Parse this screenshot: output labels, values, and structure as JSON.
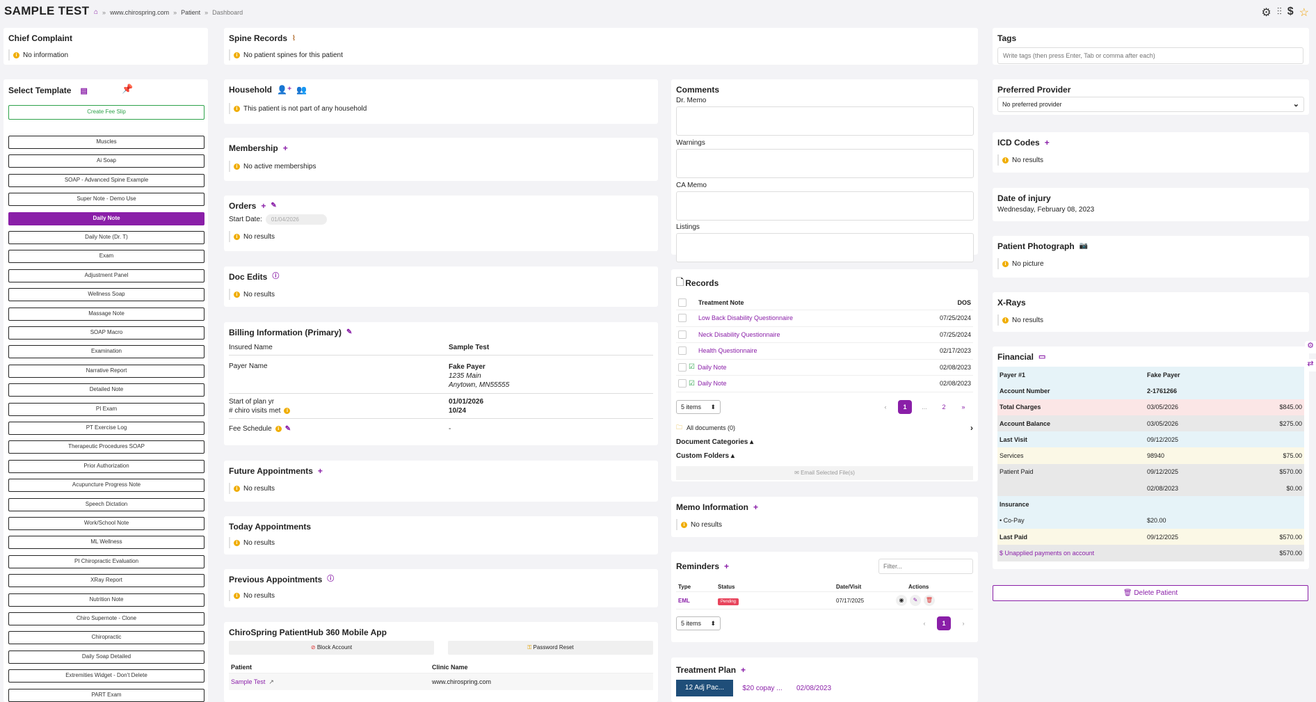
{
  "header": {
    "title": "SAMPLE TEST",
    "breadcrumb": [
      "www.chirospring.com",
      "Patient",
      "Dashboard"
    ]
  },
  "chief_complaint": {
    "title": "Chief Complaint",
    "text": "No information"
  },
  "spine_records": {
    "title": "Spine Records",
    "text": "No patient spines for this patient"
  },
  "tags": {
    "title": "Tags",
    "placeholder": "Write tags (then press Enter, Tab or comma after each)"
  },
  "select_template": {
    "title": "Select Template",
    "create_label": "Create Fee Slip",
    "items": [
      "Muscles",
      "Ai Soap",
      "SOAP - Advanced Spine Example",
      "Super Note - Demo Use",
      "Daily Note",
      "Daily Note (Dr. T)",
      "Exam",
      "Adjustment Panel",
      "Wellness Soap",
      "Massage Note",
      "SOAP Macro",
      "Examination",
      "Narrative Report",
      "Detailed Note",
      "PI Exam",
      "PT Exercise Log",
      "Therapeutic Procedures SOAP",
      "Prior Authorization",
      "Acupuncture Progress Note",
      "Speech Dictation",
      "Work/School Note",
      "ML Wellness",
      "PI Chiropractic Evaluation",
      "XRay Report",
      "Nutrition Note",
      "Chiro Supernote - Clone",
      "Chiropractic",
      "Daily Soap Detailed",
      "Extremities Widget - Don't Delete",
      "PART Exam"
    ],
    "active": "Daily Note"
  },
  "household": {
    "title": "Household",
    "text": "This patient is not part of any household"
  },
  "membership": {
    "title": "Membership",
    "text": "No active memberships"
  },
  "orders": {
    "title": "Orders",
    "start_label": "Start Date:",
    "start_value": "01/04/2026",
    "text": "No results"
  },
  "doc_edits": {
    "title": "Doc Edits",
    "text": "No results"
  },
  "billing": {
    "title": "Billing Information (Primary)",
    "insured_label": "Insured Name",
    "insured_value": "Sample Test",
    "payer_label": "Payer Name",
    "payer_value": "Fake Payer",
    "payer_addr1": "1235 Main",
    "payer_addr2": "Anytown, MN55555",
    "plan_label": "Start of plan yr",
    "plan_value": "01/01/2026",
    "visits_label": "# chiro visits met",
    "visits_value": "10/24",
    "fee_label": "Fee Schedule",
    "fee_value": "-"
  },
  "future_appts": {
    "title": "Future Appointments",
    "text": "No results"
  },
  "today_appts": {
    "title": "Today Appointments",
    "text": "No results"
  },
  "previous_appts": {
    "title": "Previous Appointments",
    "text": "No results"
  },
  "mobile_app": {
    "title": "ChiroSpring PatientHub 360 Mobile App",
    "block_label": "Block Account",
    "reset_label": "Password Reset",
    "col_patient": "Patient",
    "col_clinic": "Clinic Name",
    "patient": "Sample Test",
    "clinic": "www.chirospring.com"
  },
  "comments": {
    "title": "Comments",
    "dr_memo": "Dr. Memo",
    "warnings": "Warnings",
    "ca_memo": "CA Memo",
    "listings": "Listings"
  },
  "records": {
    "title": "Records",
    "col_note": "Treatment Note",
    "col_dos": "DOS",
    "rows": [
      {
        "name": "Low Back Disability Questionnaire",
        "dos": "07/25/2024"
      },
      {
        "name": "Neck Disability Questionnaire",
        "dos": "07/25/2024"
      },
      {
        "name": "Health Questionnaire",
        "dos": "02/17/2023"
      },
      {
        "name": "Daily Note",
        "dos": "02/08/2023"
      },
      {
        "name": "Daily Note",
        "dos": "02/08/2023"
      }
    ],
    "items_select": "5 items",
    "pages": [
      "1",
      "...",
      "2"
    ],
    "all_docs": "All documents (0)",
    "doc_categories": "Document Categories",
    "custom_folders": "Custom Folders",
    "email_label": "Email Selected File(s)"
  },
  "memo_info": {
    "title": "Memo Information",
    "text": "No results"
  },
  "reminders": {
    "title": "Reminders",
    "filter_placeholder": "Filter...",
    "col_type": "Type",
    "col_status": "Status",
    "col_date": "Date/Visit",
    "col_actions": "Actions",
    "type": "EML",
    "status": "Pending",
    "date": "07/17/2025",
    "items_select": "5 items",
    "page": "1"
  },
  "treatment_plan": {
    "title": "Treatment Plan",
    "tab1": "12 Adj Pac...",
    "tab2": "$20 copay ...",
    "tab3": "02/08/2023"
  },
  "preferred_provider": {
    "title": "Preferred Provider",
    "value": "No preferred provider"
  },
  "icd_codes": {
    "title": "ICD Codes",
    "text": "No results"
  },
  "date_of_injury": {
    "title": "Date of injury",
    "value": "Wednesday, February 08, 2023"
  },
  "patient_photo": {
    "title": "Patient Photograph",
    "text": "No picture"
  },
  "xrays": {
    "title": "X-Rays",
    "text": "No results"
  },
  "financial": {
    "title": "Financial",
    "rows": [
      {
        "a": "Payer #1",
        "b": "Fake Payer",
        "c": "",
        "bold": true,
        "bg": "#e6f3f8"
      },
      {
        "a": "Account Number",
        "b": "2-1761266",
        "c": "",
        "bold": true,
        "bg": "#e6f3f8"
      },
      {
        "a": "Total Charges",
        "b": "03/05/2026",
        "c": "$845.00",
        "bold": true,
        "bg": "#fbe6e6"
      },
      {
        "a": "Account Balance",
        "b": "03/05/2026",
        "c": "$275.00",
        "bold": true,
        "bg": "#e8e8e8"
      },
      {
        "a": "Last Visit",
        "b": "09/12/2025",
        "c": "",
        "bold": true,
        "bg": "#e6f3f8"
      },
      {
        "a": "Services",
        "b": "98940",
        "c": "$75.00",
        "bold": false,
        "bg": "#fbf8e6"
      },
      {
        "a": "Patient Paid",
        "b": "09/12/2025",
        "c": "$570.00",
        "bold": false,
        "bg": "#e8e8e8"
      },
      {
        "a": "",
        "b": "02/08/2023",
        "c": "$0.00",
        "bold": false,
        "bg": "#e8e8e8"
      },
      {
        "a": "Insurance",
        "b": "",
        "c": "",
        "bold": true,
        "bg": "#e6f3f8"
      },
      {
        "a": "• Co-Pay",
        "b": "$20.00",
        "c": "",
        "bold": false,
        "bg": "#e6f3f8"
      },
      {
        "a": "Last Paid",
        "b": "09/12/2025",
        "c": "$570.00",
        "bold": true,
        "bg": "#fbf8e6"
      },
      {
        "a": "$ Unapplied payments on account",
        "b": "",
        "c": "$570.00",
        "bold": false,
        "bg": "#e8e8e8",
        "link": true
      }
    ]
  },
  "delete_label": "Delete Patient",
  "colors": {
    "accent": "#8a1fa8",
    "pending": "#e8455d",
    "treatment_tab": "#1f4e79"
  }
}
